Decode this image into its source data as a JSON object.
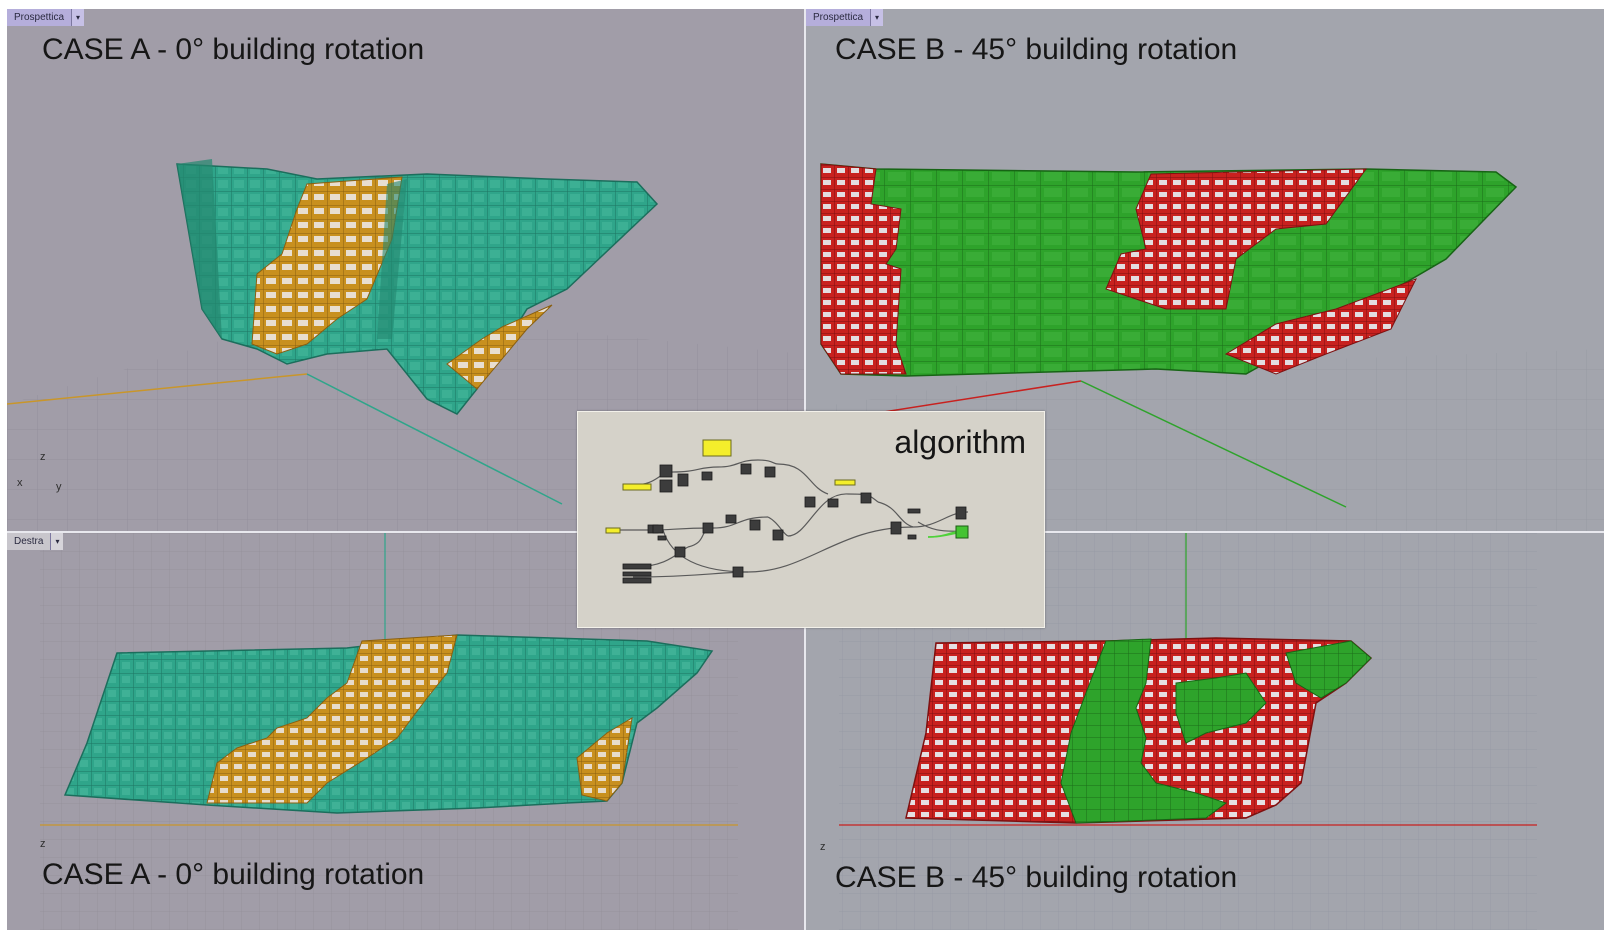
{
  "colors": {
    "teal_facade": "#2fa58a",
    "orange_panels": "#d6a22a",
    "green_facade": "#2ea32b",
    "red_panels": "#c8211f",
    "viewport_bg": "#a19da8",
    "grasshopper_bg": "#d5d2c9"
  },
  "viewports": {
    "top_left": {
      "tab_label": "Prospettica",
      "case_label": "CASE A - 0° building rotation",
      "axis": {
        "z": "z",
        "x": "x",
        "y": "y"
      }
    },
    "top_right": {
      "tab_label": "Prospettica",
      "case_label": "CASE B - 45° building rotation"
    },
    "bottom_left": {
      "tab_label": "Destra",
      "case_label": "CASE A - 0° building rotation",
      "axis": {
        "z": "z"
      }
    },
    "bottom_right": {
      "case_label": "CASE B - 45° building rotation",
      "axis": {
        "z": "z"
      }
    }
  },
  "algorithm_panel": {
    "title": "algorithm"
  },
  "icons": {
    "dropdown": "chevron-down-icon",
    "axis": "axis-gizmo-icon"
  }
}
